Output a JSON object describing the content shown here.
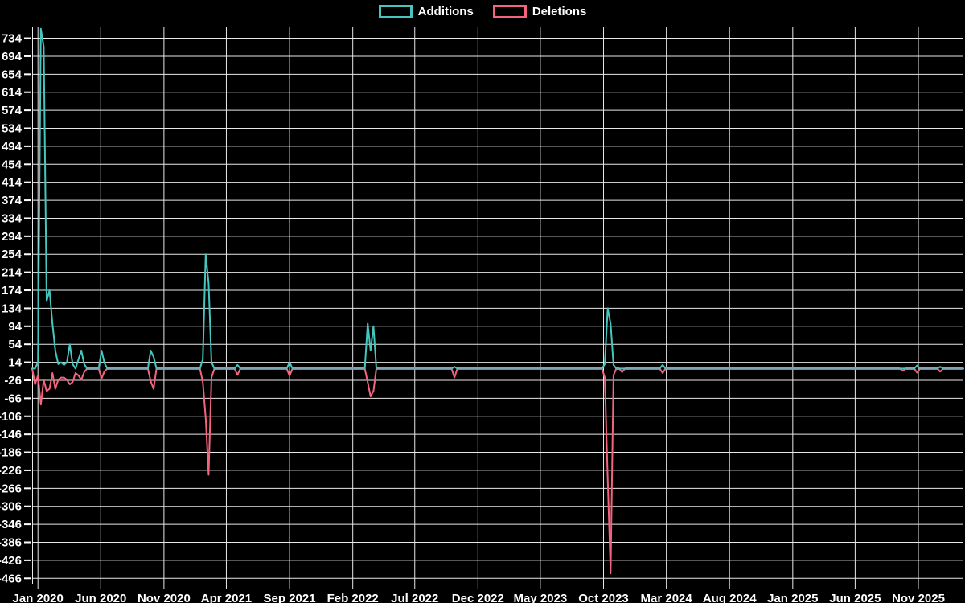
{
  "legend": {
    "position": "top",
    "items": [
      {
        "label": "Additions",
        "color": "#45c6bf"
      },
      {
        "label": "Deletions",
        "color": "#f4647f"
      }
    ]
  },
  "chart_data": {
    "type": "line",
    "title": "",
    "xlabel": "",
    "ylabel": "",
    "background": "#000000",
    "text_color": "#ffffff",
    "grid": {
      "color": "#e8e8e8",
      "horizontal": true,
      "vertical": true
    },
    "overlap_color": "#7fa3b3",
    "x_unit": "weeks since Jan 2020",
    "x_range_weeks": [
      -2,
      320
    ],
    "ylim": [
      -478,
      760
    ],
    "y_ticks": [
      734,
      694,
      654,
      614,
      574,
      534,
      494,
      454,
      414,
      374,
      334,
      294,
      254,
      214,
      174,
      134,
      94,
      54,
      14,
      -26,
      -66,
      -106,
      -146,
      -186,
      -226,
      -266,
      -306,
      -346,
      -386,
      -426,
      -466
    ],
    "x_ticks": [
      {
        "label": "Jan 2020",
        "week": 0
      },
      {
        "label": "Jun 2020",
        "week": 21.71
      },
      {
        "label": "Nov 2020",
        "week": 43.57
      },
      {
        "label": "Apr 2021",
        "week": 65.14
      },
      {
        "label": "Sep 2021",
        "week": 87.0
      },
      {
        "label": "Feb 2022",
        "week": 108.86
      },
      {
        "label": "Jul 2022",
        "week": 130.29
      },
      {
        "label": "Dec 2022",
        "week": 152.14
      },
      {
        "label": "May 2023",
        "week": 173.71
      },
      {
        "label": "Oct 2023",
        "week": 195.57
      },
      {
        "label": "Mar 2024",
        "week": 217.29
      },
      {
        "label": "Aug 2024",
        "week": 239.14
      },
      {
        "label": "Jan 2025",
        "week": 261.0
      },
      {
        "label": "Jun 2025",
        "week": 282.57
      },
      {
        "label": "Nov 2025",
        "week": 304.43
      }
    ],
    "series": [
      {
        "name": "Additions",
        "color": "#45c6bf",
        "baseline": 0,
        "points_nonzero": [
          [
            0,
            14
          ],
          [
            1,
            755
          ],
          [
            2,
            715
          ],
          [
            3,
            150
          ],
          [
            4,
            174
          ],
          [
            5,
            100
          ],
          [
            6,
            40
          ],
          [
            7,
            10
          ],
          [
            8,
            14
          ],
          [
            9,
            8
          ],
          [
            10,
            14
          ],
          [
            11,
            54
          ],
          [
            12,
            10
          ],
          [
            14,
            20
          ],
          [
            15,
            40
          ],
          [
            16,
            10
          ],
          [
            22,
            40
          ],
          [
            23,
            12
          ],
          [
            39,
            40
          ],
          [
            40,
            26
          ],
          [
            57,
            20
          ],
          [
            58,
            254
          ],
          [
            59,
            190
          ],
          [
            60,
            14
          ],
          [
            69,
            8
          ],
          [
            87,
            14
          ],
          [
            114,
            100
          ],
          [
            115,
            40
          ],
          [
            116,
            94
          ],
          [
            144,
            4
          ],
          [
            196,
            10
          ],
          [
            197,
            134
          ],
          [
            198,
            100
          ],
          [
            199,
            8
          ],
          [
            216,
            8
          ],
          [
            304,
            7
          ],
          [
            312,
            4
          ]
        ]
      },
      {
        "name": "Deletions",
        "color": "#f4647f",
        "baseline": 0,
        "points_nonzero": [
          [
            -1,
            -35
          ],
          [
            0,
            -15
          ],
          [
            1,
            -80
          ],
          [
            2,
            -25
          ],
          [
            3,
            -50
          ],
          [
            4,
            -45
          ],
          [
            5,
            -10
          ],
          [
            6,
            -45
          ],
          [
            7,
            -25
          ],
          [
            8,
            -20
          ],
          [
            9,
            -20
          ],
          [
            10,
            -25
          ],
          [
            11,
            -35
          ],
          [
            12,
            -30
          ],
          [
            13,
            -10
          ],
          [
            14,
            -15
          ],
          [
            15,
            -25
          ],
          [
            16,
            -8
          ],
          [
            22,
            -22
          ],
          [
            23,
            -6
          ],
          [
            39,
            -28
          ],
          [
            40,
            -45
          ],
          [
            57,
            -30
          ],
          [
            58,
            -110
          ],
          [
            59,
            -236
          ],
          [
            60,
            -20
          ],
          [
            69,
            -14
          ],
          [
            87,
            -16
          ],
          [
            114,
            -30
          ],
          [
            115,
            -62
          ],
          [
            116,
            -50
          ],
          [
            144,
            -20
          ],
          [
            196,
            -20
          ],
          [
            197,
            -245
          ],
          [
            198,
            -455
          ],
          [
            199,
            -15
          ],
          [
            202,
            -8
          ],
          [
            216,
            -10
          ],
          [
            299,
            -5
          ],
          [
            304,
            -9
          ],
          [
            312,
            -7
          ]
        ]
      }
    ]
  }
}
